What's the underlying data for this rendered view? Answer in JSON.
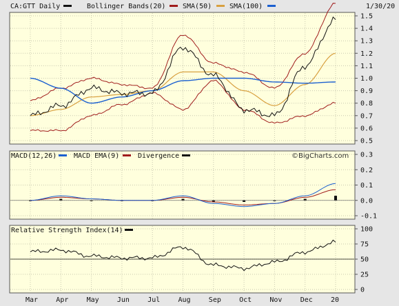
{
  "header": {
    "symbol": "CA:GTT Daily",
    "date": "1/30/20"
  },
  "legends": {
    "price": [
      {
        "label": "Bollinger Bands(20)",
        "color": "#111111"
      },
      {
        "label": "SMA(50)",
        "color": "#a01c1c"
      },
      {
        "label": "SMA(100)",
        "color": "#d8a040"
      },
      {
        "label": "",
        "color": "#1a5fd0"
      }
    ],
    "macd": [
      {
        "label": "MACD(12,26)",
        "color": "#1a5fd0"
      },
      {
        "label": "MACD EMA(9)",
        "color": "#a01c1c"
      },
      {
        "label": "Divergence",
        "color": "#111111"
      }
    ],
    "rsi": [
      {
        "label": "Relative Strength Index(14)",
        "color": "#111111"
      }
    ]
  },
  "watermark": "©BigCharts.com",
  "colors": {
    "panel_bg": "#ffffdd",
    "outer_bg": "#e6e6e6",
    "bollinger": "#a01c1c",
    "sma50": "#d8a040",
    "sma100": "#1a5fd0",
    "price": "#111111"
  },
  "chart_data": [
    {
      "type": "line",
      "title": "CA:GTT Daily",
      "x_tick_labels": [
        "Mar",
        "Apr",
        "May",
        "Jun",
        "Jul",
        "Aug",
        "Sep",
        "Oct",
        "Nov",
        "Dec",
        "20"
      ],
      "x": [
        "Mar",
        "Apr",
        "May",
        "Jun",
        "Jul",
        "Aug",
        "Sep",
        "Oct",
        "Nov",
        "Dec",
        "20"
      ],
      "ylim": [
        0.5,
        1.5
      ],
      "y_tick_labels": [
        "1.5",
        "1.4",
        "1.3",
        "1.2",
        "1.1",
        "1.0",
        "0.9",
        "0.8",
        "0.7",
        "0.6",
        "0.5"
      ],
      "series": [
        {
          "name": "CA:GTT Daily",
          "values": [
            0.7,
            0.78,
            0.92,
            0.88,
            0.88,
            1.25,
            1.02,
            0.75,
            0.7,
            1.1,
            1.47
          ]
        },
        {
          "name": "Bollinger Bands(20)",
          "values": [
            0.82,
            0.92,
            1.0,
            0.95,
            0.92,
            1.35,
            1.12,
            1.05,
            0.92,
            1.2,
            1.6
          ]
        },
        {
          "name": "SMA(50)",
          "values": [
            0.7,
            0.75,
            0.85,
            0.87,
            0.9,
            1.05,
            1.05,
            0.9,
            0.78,
            0.95,
            1.2
          ]
        },
        {
          "name": "SMA(100)",
          "values": [
            1.0,
            0.92,
            0.8,
            0.85,
            0.9,
            0.98,
            1.0,
            1.0,
            0.97,
            0.96,
            0.97
          ]
        }
      ]
    },
    {
      "type": "line",
      "title": "MACD(12,26)",
      "x": [
        "Mar",
        "Apr",
        "May",
        "Jun",
        "Jul",
        "Aug",
        "Sep",
        "Oct",
        "Nov",
        "Dec",
        "20"
      ],
      "ylim": [
        -0.1,
        0.3
      ],
      "y_tick_labels": [
        "0.3",
        "0.2",
        "0.1",
        "0.0",
        "-0.1"
      ],
      "series": [
        {
          "name": "MACD(12,26)",
          "values": [
            0.0,
            0.03,
            0.01,
            0.0,
            0.0,
            0.03,
            -0.02,
            -0.04,
            -0.02,
            0.03,
            0.11
          ]
        },
        {
          "name": "MACD EMA(9)",
          "values": [
            0.0,
            0.02,
            0.01,
            0.0,
            0.0,
            0.02,
            -0.01,
            -0.03,
            -0.02,
            0.02,
            0.07
          ]
        },
        {
          "name": "Divergence",
          "values": [
            0.0,
            0.01,
            0.0,
            0.0,
            0.0,
            0.01,
            -0.01,
            -0.01,
            0.0,
            0.01,
            0.03
          ]
        }
      ]
    },
    {
      "type": "line",
      "title": "Relative Strength Index(14)",
      "x": [
        "Mar",
        "Apr",
        "May",
        "Jun",
        "Jul",
        "Aug",
        "Sep",
        "Oct",
        "Nov",
        "Dec",
        "20"
      ],
      "ylim": [
        0,
        100
      ],
      "y_tick_labels": [
        "100",
        "75",
        "50",
        "25",
        "0"
      ],
      "series": [
        {
          "name": "Relative Strength Index(14)",
          "values": [
            62,
            65,
            55,
            52,
            52,
            70,
            40,
            35,
            45,
            62,
            78
          ]
        }
      ],
      "reference_line": 50
    }
  ]
}
